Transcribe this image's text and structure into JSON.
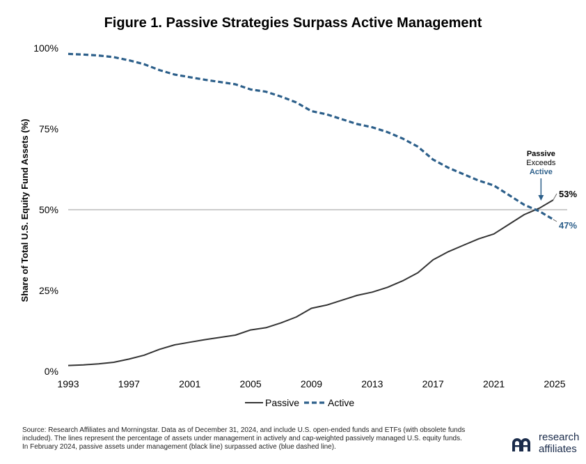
{
  "chart_data": {
    "type": "line",
    "title": "Figure 1. Passive Strategies Surpass Active Management",
    "ylabel": "Share of Total U.S. Equity Fund Assets (%)",
    "xlabel": "",
    "x_ticks": [
      "1993",
      "1997",
      "2001",
      "2005",
      "2009",
      "2013",
      "2017",
      "2021",
      "2025"
    ],
    "y_ticks": [
      {
        "value": 0,
        "label": "0%"
      },
      {
        "value": 25,
        "label": "25%"
      },
      {
        "value": 50,
        "label": "50%"
      },
      {
        "value": 75,
        "label": "75%"
      },
      {
        "value": 100,
        "label": "100%"
      }
    ],
    "xlim": [
      1993,
      2025
    ],
    "ylim": [
      0,
      100
    ],
    "reference_line": 50,
    "legend_position": "bottom-center",
    "series": [
      {
        "name": "Passive",
        "color": "#333333",
        "style": "solid",
        "x": [
          1993,
          1994,
          1995,
          1996,
          1997,
          1998,
          1999,
          2000,
          2001,
          2002,
          2003,
          2004,
          2005,
          2006,
          2007,
          2008,
          2009,
          2010,
          2011,
          2012,
          2013,
          2014,
          2015,
          2016,
          2017,
          2018,
          2019,
          2020,
          2021,
          2022,
          2023,
          2024,
          2024.9
        ],
        "values": [
          1.8,
          2.0,
          2.3,
          2.8,
          3.8,
          5.0,
          6.8,
          8.2,
          9.0,
          9.8,
          10.5,
          11.2,
          12.8,
          13.5,
          15.0,
          16.8,
          19.5,
          20.5,
          22.0,
          23.5,
          24.5,
          26.0,
          28.0,
          30.5,
          34.5,
          37.0,
          39.0,
          41.0,
          42.5,
          45.5,
          48.5,
          50.5,
          53
        ]
      },
      {
        "name": "Active",
        "color": "#2c5f8a",
        "style": "dashed",
        "x": [
          1993,
          1994,
          1995,
          1996,
          1997,
          1998,
          1999,
          2000,
          2001,
          2002,
          2003,
          2004,
          2005,
          2006,
          2007,
          2008,
          2009,
          2010,
          2011,
          2012,
          2013,
          2014,
          2015,
          2016,
          2017,
          2018,
          2019,
          2020,
          2021,
          2022,
          2023,
          2024,
          2024.9
        ],
        "values": [
          98.2,
          98.0,
          97.7,
          97.2,
          96.2,
          95.0,
          93.2,
          91.8,
          91.0,
          90.2,
          89.5,
          88.8,
          87.2,
          86.5,
          85.0,
          83.2,
          80.5,
          79.5,
          78.0,
          76.5,
          75.5,
          74.0,
          72.0,
          69.5,
          65.5,
          63.0,
          61.0,
          59.0,
          57.5,
          54.5,
          51.5,
          49.5,
          47
        ]
      }
    ],
    "end_labels": [
      {
        "series": "Passive",
        "text": "53%"
      },
      {
        "series": "Active",
        "text": "47%"
      }
    ],
    "annotation": {
      "x": 2024.1,
      "line1": "Passive",
      "line2": "Exceeds",
      "line3": "Active"
    }
  },
  "footer": {
    "source": "Source: Research Affiliates and Morningstar. Data as of December 31, 2024, and include U.S. open-ended funds and ETFs (with obsolete funds included). The lines represent the percentage of assets under management in actively and cap-weighted passively managed U.S. equity funds. In February 2024, passive assets under management (black line) surpassed active (blue dashed line).",
    "logo_line1": "research",
    "logo_line2": "affiliates"
  },
  "colors": {
    "passive": "#333333",
    "active": "#2c5f8a",
    "reference": "#999999"
  }
}
